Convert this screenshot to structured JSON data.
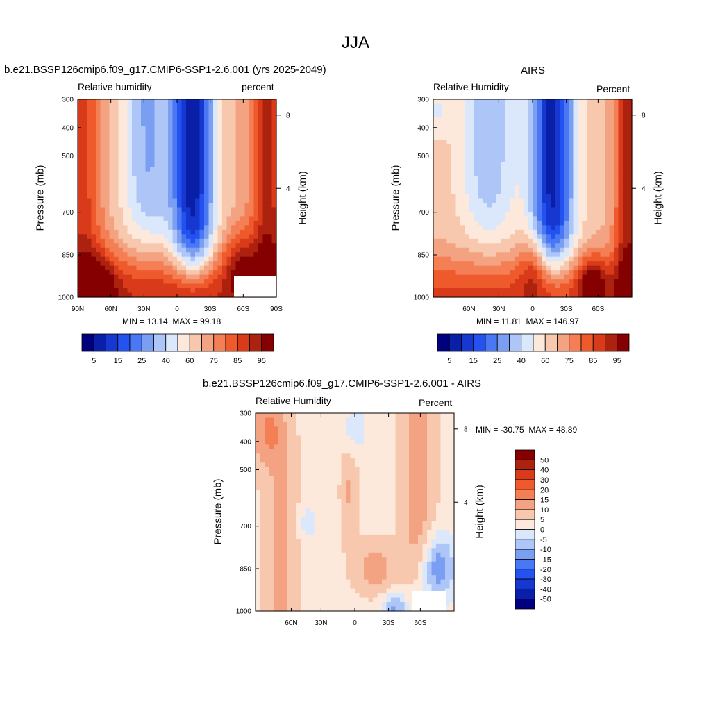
{
  "page": {
    "title": "JJA"
  },
  "chart_data": [
    {
      "type": "heatmap",
      "title": "b.e21.BSSP126cmip6.f09_g17.CMIP6-SSP1-2.6.001 (yrs 2025-2049)",
      "left_label": "Relative humidity",
      "right_label": "percent",
      "ylabel": "Pressure (mb)",
      "ylabel_right": "Height (km)",
      "y_ticks": [
        "300",
        "400",
        "500",
        "700",
        "850",
        "1000"
      ],
      "y_right_ticks": [
        "8",
        "4"
      ],
      "x_ticks": [
        "90N",
        "60N",
        "30N",
        "0",
        "30S",
        "60S",
        "90S"
      ],
      "stats": {
        "min_label": "MIN =",
        "min": "13.14",
        "max_label": "MAX =",
        "max": "99.18"
      },
      "colorbar_orientation": "horizontal",
      "colorbar_labels": [
        "5",
        "15",
        "25",
        "40",
        "60",
        "75",
        "85",
        "95"
      ]
    },
    {
      "type": "heatmap",
      "title": "AIRS",
      "left_label": "Relative Humidity",
      "right_label": "Percent",
      "ylabel": "Pressure (mb)",
      "ylabel_right": "Height (km)",
      "y_ticks": [
        "300",
        "400",
        "500",
        "700",
        "850",
        "1000"
      ],
      "y_right_ticks": [
        "8",
        "4"
      ],
      "x_ticks": [
        "60N",
        "30N",
        "0",
        "30S",
        "60S"
      ],
      "stats": {
        "min_label": "MIN =",
        "min": "11.81",
        "max_label": "MAX =",
        "max": "146.97"
      },
      "colorbar_orientation": "horizontal",
      "colorbar_labels": [
        "5",
        "15",
        "25",
        "40",
        "60",
        "75",
        "85",
        "95"
      ]
    },
    {
      "type": "heatmap",
      "title": "b.e21.BSSP126cmip6.f09_g17.CMIP6-SSP1-2.6.001 - AIRS",
      "left_label": "Relative Humidity",
      "right_label": "Percent",
      "ylabel": "Pressure (mb)",
      "ylabel_right": "Height (km)",
      "y_ticks": [
        "300",
        "400",
        "500",
        "700",
        "850",
        "1000"
      ],
      "y_right_ticks": [
        "8",
        "4"
      ],
      "x_ticks": [
        "60N",
        "30N",
        "0",
        "30S",
        "60S"
      ],
      "stats": {
        "min_label": "MIN =",
        "min": "-30.75",
        "max_label": "MAX =",
        "max": "48.89"
      },
      "colorbar_orientation": "vertical",
      "colorbar_labels": [
        "50",
        "40",
        "30",
        "20",
        "15",
        "10",
        "5",
        "0",
        "-5",
        "-10",
        "-15",
        "-20",
        "-30",
        "-40",
        "-50"
      ]
    }
  ],
  "colors": {
    "ramp": [
      "#00007f",
      "#0a1fa8",
      "#1638d0",
      "#2352f0",
      "#4a78f5",
      "#7a9ff2",
      "#aec6f7",
      "#dbe8fb",
      "#fde9dc",
      "#f8c8ae",
      "#f4a382",
      "#f47f55",
      "#ef5a2c",
      "#d93a1a",
      "#ad210f",
      "#850000"
    ],
    "colorbar_top": [
      "#00007f",
      "#0a1fa8",
      "#1638d0",
      "#2352f0",
      "#4a78f5",
      "#7a9ff2",
      "#aec6f7",
      "#dbe8fb",
      "#fde9dc",
      "#f8c8ae",
      "#f4a382",
      "#f47f55",
      "#ef5a2c",
      "#d93a1a",
      "#ad210f",
      "#850000"
    ],
    "colorbar_diff": [
      "#850000",
      "#ad210f",
      "#d93a1a",
      "#ef5a2c",
      "#f47f55",
      "#f4a382",
      "#f8c8ae",
      "#fde9dc",
      "#dbe8fb",
      "#aec6f7",
      "#7a9ff2",
      "#4a78f5",
      "#2352f0",
      "#1638d0",
      "#0a1fa8",
      "#00007f"
    ]
  }
}
